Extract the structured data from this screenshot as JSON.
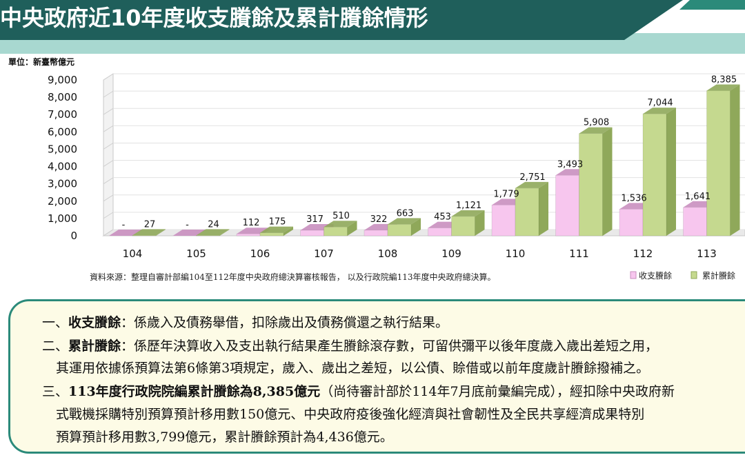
{
  "title": "中央政府近10年度收支賸餘及累計賸餘情形",
  "colors": {
    "banner": "#1f5f5b",
    "banner_band": "#a8d8d0",
    "surplus_front": "#f7c6ee",
    "surplus_side": "#c98fbf",
    "cumulative_front": "#c5d98f",
    "cumulative_side": "#8fa85a",
    "box_border": "#2b8a7a",
    "box_fill": "#fdfbe6"
  },
  "chart_data": {
    "type": "bar",
    "unit_label": "單位：新臺幣億元",
    "categories": [
      "104",
      "105",
      "106",
      "107",
      "108",
      "109",
      "110",
      "111",
      "112",
      "113"
    ],
    "series": [
      {
        "name": "收支賸餘",
        "values": [
          0,
          0,
          112,
          317,
          322,
          453,
          1779,
          3493,
          1536,
          1641
        ],
        "labels": [
          "-",
          "-",
          "112",
          "317",
          "322",
          "453",
          "1,779",
          "3,493",
          "1,536",
          "1,641"
        ]
      },
      {
        "name": "累計賸餘",
        "values": [
          27,
          24,
          175,
          510,
          663,
          1121,
          2751,
          5908,
          7044,
          8385
        ],
        "labels": [
          "27",
          "24",
          "175",
          "510",
          "663",
          "1,121",
          "2,751",
          "5,908",
          "7,044",
          "8,385"
        ]
      }
    ],
    "ylim": [
      0,
      9000
    ],
    "yticks": [
      "0",
      "1,000",
      "2,000",
      "3,000",
      "4,000",
      "5,000",
      "6,000",
      "7,000",
      "8,000",
      "9,000"
    ],
    "source": "資料來源：整理自審計部編104至112年度中央政府總決算審核報告，  以及行政院編113年度中央政府總決算。",
    "legend": [
      "收支賸餘",
      "累計賸餘"
    ],
    "legend_position": "bottom-right"
  },
  "notes": {
    "n1_num": "一、",
    "n1_term": "收支賸餘",
    "n1_text": "：係歲入及債務舉借，扣除歲出及債務償還之執行結果。",
    "n2_num": "二、",
    "n2_term": "累計賸餘",
    "n2_text": "：係歷年決算收入及支出執行結果產生賸餘滾存數，可留供彌平以後年度歲入歲出差短之用，",
    "n2_line2": "其運用依據係預算法第6條第3項規定，歲入、歲出之差短，以公債、賒借或以前年度歲計賸餘撥補之。",
    "n3_num": "三、",
    "n3_term": "113年度行政院院編累計賸餘為8,385億元",
    "n3_text": "（尚待審計部於114年7月底前彙編完成），經扣除中央政府新",
    "n3_line2": "式戰機採購特別預算預計移用數150億元、中央政府疫後強化經濟與社會韌性及全民共享經濟成果特別",
    "n3_line3": "預算預計移用數3,799億元，累計賸餘預計為4,436億元。"
  }
}
